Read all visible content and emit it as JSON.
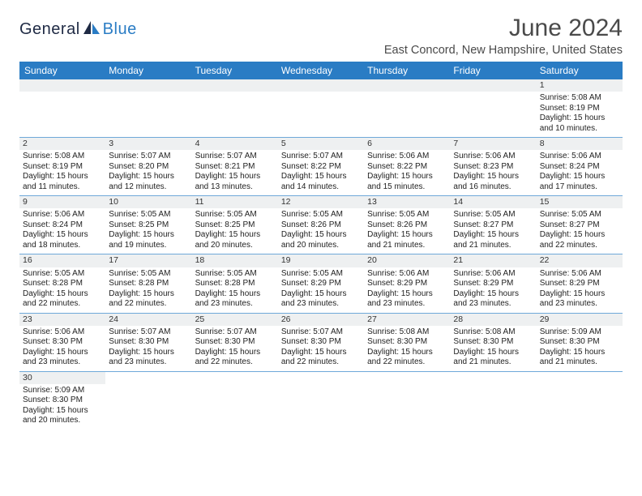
{
  "header": {
    "logo_part1": "General",
    "logo_part2": "Blue",
    "title": "June 2024",
    "location": "East Concord, New Hampshire, United States"
  },
  "colors": {
    "header_bg": "#2a7cc4",
    "header_text": "#ffffff",
    "daynum_bg": "#eef0f1",
    "row_separator": "#6fa9d9",
    "title_color": "#4a4a4a",
    "body_text": "#222222",
    "logo_blue": "#2a7cc4",
    "logo_dark": "#1f2a44"
  },
  "typography": {
    "title_fontsize": 30,
    "subtitle_fontsize": 14.5,
    "weekday_fontsize": 12,
    "daynum_fontsize": 10.5,
    "cell_fontsize": 10
  },
  "calendar": {
    "weekdays": [
      "Sunday",
      "Monday",
      "Tuesday",
      "Wednesday",
      "Thursday",
      "Friday",
      "Saturday"
    ],
    "weeks": [
      {
        "numbers": [
          "",
          "",
          "",
          "",
          "",
          "",
          "1"
        ],
        "cells": [
          [],
          [],
          [],
          [],
          [],
          [],
          [
            "Sunrise: 5:08 AM",
            "Sunset: 8:19 PM",
            "Daylight: 15 hours",
            "and 10 minutes."
          ]
        ]
      },
      {
        "numbers": [
          "2",
          "3",
          "4",
          "5",
          "6",
          "7",
          "8"
        ],
        "cells": [
          [
            "Sunrise: 5:08 AM",
            "Sunset: 8:19 PM",
            "Daylight: 15 hours",
            "and 11 minutes."
          ],
          [
            "Sunrise: 5:07 AM",
            "Sunset: 8:20 PM",
            "Daylight: 15 hours",
            "and 12 minutes."
          ],
          [
            "Sunrise: 5:07 AM",
            "Sunset: 8:21 PM",
            "Daylight: 15 hours",
            "and 13 minutes."
          ],
          [
            "Sunrise: 5:07 AM",
            "Sunset: 8:22 PM",
            "Daylight: 15 hours",
            "and 14 minutes."
          ],
          [
            "Sunrise: 5:06 AM",
            "Sunset: 8:22 PM",
            "Daylight: 15 hours",
            "and 15 minutes."
          ],
          [
            "Sunrise: 5:06 AM",
            "Sunset: 8:23 PM",
            "Daylight: 15 hours",
            "and 16 minutes."
          ],
          [
            "Sunrise: 5:06 AM",
            "Sunset: 8:24 PM",
            "Daylight: 15 hours",
            "and 17 minutes."
          ]
        ]
      },
      {
        "numbers": [
          "9",
          "10",
          "11",
          "12",
          "13",
          "14",
          "15"
        ],
        "cells": [
          [
            "Sunrise: 5:06 AM",
            "Sunset: 8:24 PM",
            "Daylight: 15 hours",
            "and 18 minutes."
          ],
          [
            "Sunrise: 5:05 AM",
            "Sunset: 8:25 PM",
            "Daylight: 15 hours",
            "and 19 minutes."
          ],
          [
            "Sunrise: 5:05 AM",
            "Sunset: 8:25 PM",
            "Daylight: 15 hours",
            "and 20 minutes."
          ],
          [
            "Sunrise: 5:05 AM",
            "Sunset: 8:26 PM",
            "Daylight: 15 hours",
            "and 20 minutes."
          ],
          [
            "Sunrise: 5:05 AM",
            "Sunset: 8:26 PM",
            "Daylight: 15 hours",
            "and 21 minutes."
          ],
          [
            "Sunrise: 5:05 AM",
            "Sunset: 8:27 PM",
            "Daylight: 15 hours",
            "and 21 minutes."
          ],
          [
            "Sunrise: 5:05 AM",
            "Sunset: 8:27 PM",
            "Daylight: 15 hours",
            "and 22 minutes."
          ]
        ]
      },
      {
        "numbers": [
          "16",
          "17",
          "18",
          "19",
          "20",
          "21",
          "22"
        ],
        "cells": [
          [
            "Sunrise: 5:05 AM",
            "Sunset: 8:28 PM",
            "Daylight: 15 hours",
            "and 22 minutes."
          ],
          [
            "Sunrise: 5:05 AM",
            "Sunset: 8:28 PM",
            "Daylight: 15 hours",
            "and 22 minutes."
          ],
          [
            "Sunrise: 5:05 AM",
            "Sunset: 8:28 PM",
            "Daylight: 15 hours",
            "and 23 minutes."
          ],
          [
            "Sunrise: 5:05 AM",
            "Sunset: 8:29 PM",
            "Daylight: 15 hours",
            "and 23 minutes."
          ],
          [
            "Sunrise: 5:06 AM",
            "Sunset: 8:29 PM",
            "Daylight: 15 hours",
            "and 23 minutes."
          ],
          [
            "Sunrise: 5:06 AM",
            "Sunset: 8:29 PM",
            "Daylight: 15 hours",
            "and 23 minutes."
          ],
          [
            "Sunrise: 5:06 AM",
            "Sunset: 8:29 PM",
            "Daylight: 15 hours",
            "and 23 minutes."
          ]
        ]
      },
      {
        "numbers": [
          "23",
          "24",
          "25",
          "26",
          "27",
          "28",
          "29"
        ],
        "cells": [
          [
            "Sunrise: 5:06 AM",
            "Sunset: 8:30 PM",
            "Daylight: 15 hours",
            "and 23 minutes."
          ],
          [
            "Sunrise: 5:07 AM",
            "Sunset: 8:30 PM",
            "Daylight: 15 hours",
            "and 23 minutes."
          ],
          [
            "Sunrise: 5:07 AM",
            "Sunset: 8:30 PM",
            "Daylight: 15 hours",
            "and 22 minutes."
          ],
          [
            "Sunrise: 5:07 AM",
            "Sunset: 8:30 PM",
            "Daylight: 15 hours",
            "and 22 minutes."
          ],
          [
            "Sunrise: 5:08 AM",
            "Sunset: 8:30 PM",
            "Daylight: 15 hours",
            "and 22 minutes."
          ],
          [
            "Sunrise: 5:08 AM",
            "Sunset: 8:30 PM",
            "Daylight: 15 hours",
            "and 21 minutes."
          ],
          [
            "Sunrise: 5:09 AM",
            "Sunset: 8:30 PM",
            "Daylight: 15 hours",
            "and 21 minutes."
          ]
        ]
      },
      {
        "numbers": [
          "30",
          "",
          "",
          "",
          "",
          "",
          ""
        ],
        "cells": [
          [
            "Sunrise: 5:09 AM",
            "Sunset: 8:30 PM",
            "Daylight: 15 hours",
            "and 20 minutes."
          ],
          [],
          [],
          [],
          [],
          [],
          []
        ]
      }
    ]
  }
}
